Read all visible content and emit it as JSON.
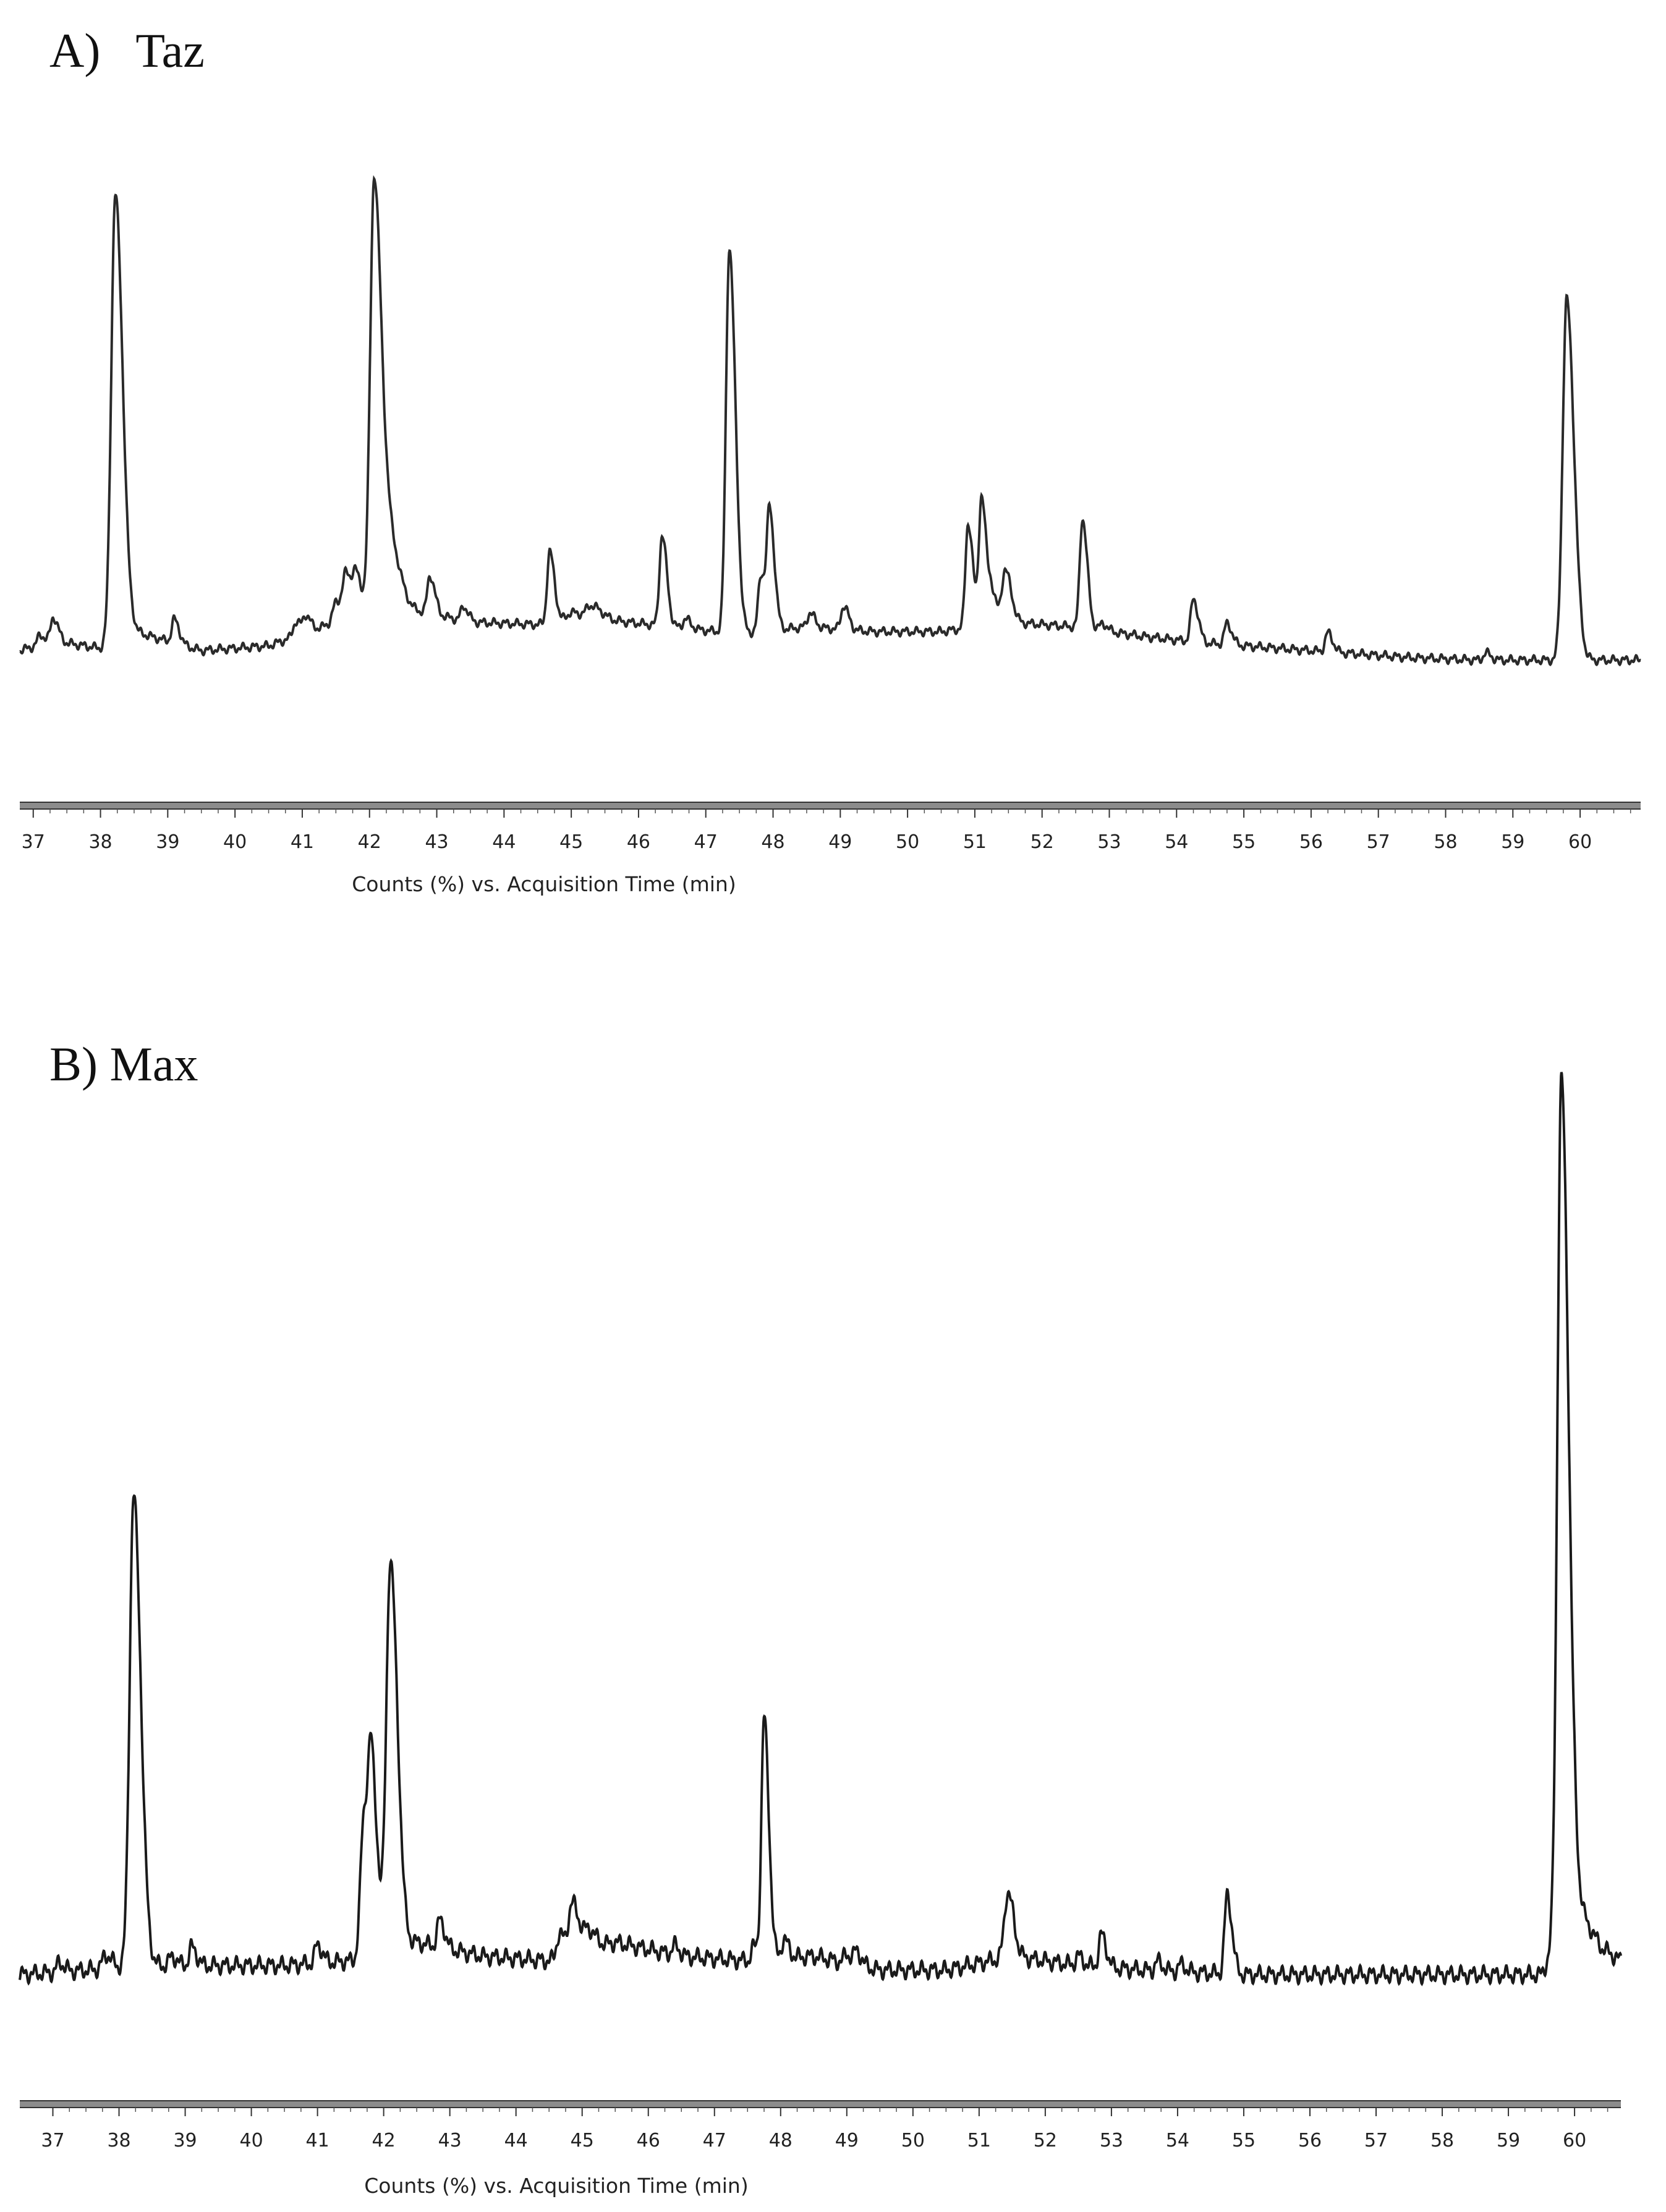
{
  "chart_data": [
    {
      "type": "line",
      "panel_label": "A)   Taz",
      "xlabel": "Counts (%) vs. Acquisition Time (min)",
      "ylabel": "",
      "xlim": [
        36.8,
        60.9
      ],
      "ylim": [
        0,
        100
      ],
      "xticks": [
        37,
        38,
        39,
        40,
        41,
        42,
        43,
        44,
        45,
        46,
        47,
        48,
        49,
        50,
        51,
        52,
        53,
        54,
        55,
        56,
        57,
        58,
        59,
        60
      ],
      "baseline": [
        [
          36.8,
          2.0
        ],
        [
          37.3,
          4.0
        ],
        [
          38.0,
          2.5
        ],
        [
          38.5,
          6.0
        ],
        [
          39.5,
          2.0
        ],
        [
          40.5,
          3.0
        ],
        [
          41.5,
          8.0
        ],
        [
          42.5,
          11.0
        ],
        [
          43.5,
          8.0
        ],
        [
          44.5,
          7.5
        ],
        [
          45.5,
          8.5
        ],
        [
          46.5,
          7.0
        ],
        [
          47.5,
          5.5
        ],
        [
          48.5,
          7.0
        ],
        [
          49.5,
          6.0
        ],
        [
          50.5,
          6.0
        ],
        [
          51.5,
          8.0
        ],
        [
          52.5,
          7.0
        ],
        [
          53.5,
          5.0
        ],
        [
          54.5,
          3.5
        ],
        [
          55.5,
          2.5
        ],
        [
          56.5,
          1.5
        ],
        [
          57.5,
          0.5
        ],
        [
          58.5,
          0.0
        ],
        [
          59.5,
          0.0
        ],
        [
          60.9,
          0.0
        ]
      ],
      "peaks": [
        {
          "x": 37.1,
          "h": 2.0,
          "w": 0.04
        },
        {
          "x": 37.3,
          "h": 5.0,
          "w": 0.04
        },
        {
          "x": 38.22,
          "h": 94.0,
          "w": 0.06
        },
        {
          "x": 39.1,
          "h": 5.0,
          "w": 0.04
        },
        {
          "x": 40.9,
          "h": 3.0,
          "w": 0.04
        },
        {
          "x": 41.05,
          "h": 3.5,
          "w": 0.04
        },
        {
          "x": 41.5,
          "h": 4.0,
          "w": 0.05
        },
        {
          "x": 41.65,
          "h": 9.0,
          "w": 0.05
        },
        {
          "x": 41.8,
          "h": 8.0,
          "w": 0.05
        },
        {
          "x": 42.07,
          "h": 92.0,
          "w": 0.06
        },
        {
          "x": 42.3,
          "h": 14.0,
          "w": 0.08
        },
        {
          "x": 42.9,
          "h": 8.0,
          "w": 0.04
        },
        {
          "x": 43.4,
          "h": 3.0,
          "w": 0.04
        },
        {
          "x": 44.68,
          "h": 15.0,
          "w": 0.04
        },
        {
          "x": 45.0,
          "h": 2.0,
          "w": 0.08
        },
        {
          "x": 45.3,
          "h": 3.0,
          "w": 0.08
        },
        {
          "x": 46.35,
          "h": 19.0,
          "w": 0.04
        },
        {
          "x": 46.7,
          "h": 2.0,
          "w": 0.04
        },
        {
          "x": 47.35,
          "h": 81.0,
          "w": 0.05
        },
        {
          "x": 47.82,
          "h": 12.0,
          "w": 0.04
        },
        {
          "x": 47.95,
          "h": 24.0,
          "w": 0.04
        },
        {
          "x": 48.55,
          "h": 3.0,
          "w": 0.04
        },
        {
          "x": 49.05,
          "h": 5.0,
          "w": 0.04
        },
        {
          "x": 50.9,
          "h": 22.0,
          "w": 0.04
        },
        {
          "x": 51.1,
          "h": 27.0,
          "w": 0.04
        },
        {
          "x": 51.25,
          "h": 6.0,
          "w": 0.04
        },
        {
          "x": 51.45,
          "h": 11.0,
          "w": 0.05
        },
        {
          "x": 52.6,
          "h": 23.0,
          "w": 0.04
        },
        {
          "x": 52.9,
          "h": 1.5,
          "w": 0.04
        },
        {
          "x": 54.25,
          "h": 9.0,
          "w": 0.04
        },
        {
          "x": 54.75,
          "h": 4.5,
          "w": 0.04
        },
        {
          "x": 56.25,
          "h": 4.0,
          "w": 0.04
        },
        {
          "x": 58.6,
          "h": 1.5,
          "w": 0.04
        },
        {
          "x": 59.8,
          "h": 76.0,
          "w": 0.06
        }
      ]
    },
    {
      "type": "line",
      "panel_label": "B) Max",
      "xlabel": "Counts (%) vs. Acquisition Time (min)",
      "ylabel": "",
      "xlim": [
        36.5,
        60.7
      ],
      "ylim": [
        0,
        100
      ],
      "xticks": [
        37,
        38,
        39,
        40,
        41,
        42,
        43,
        44,
        45,
        46,
        47,
        48,
        49,
        50,
        51,
        52,
        53,
        54,
        55,
        56,
        57,
        58,
        59,
        60
      ],
      "baseline": [
        [
          36.5,
          0.0
        ],
        [
          37.5,
          0.5
        ],
        [
          38.5,
          1.0
        ],
        [
          40.5,
          1.0
        ],
        [
          41.5,
          1.5
        ],
        [
          42.5,
          3.5
        ],
        [
          43.5,
          2.0
        ],
        [
          44.5,
          1.5
        ],
        [
          45.5,
          3.5
        ],
        [
          46.5,
          2.0
        ],
        [
          47.5,
          1.5
        ],
        [
          48.5,
          2.0
        ],
        [
          49.5,
          0.5
        ],
        [
          50.5,
          0.5
        ],
        [
          51.5,
          2.0
        ],
        [
          52.5,
          1.0
        ],
        [
          53.5,
          0.5
        ],
        [
          55.0,
          0.0
        ],
        [
          57.0,
          0.0
        ],
        [
          59.5,
          0.0
        ],
        [
          60.0,
          8.0
        ],
        [
          60.4,
          3.0
        ],
        [
          60.7,
          1.5
        ]
      ],
      "peaks": [
        {
          "x": 37.1,
          "h": 1.0,
          "w": 0.04
        },
        {
          "x": 37.8,
          "h": 1.5,
          "w": 0.05
        },
        {
          "x": 38.22,
          "h": 51.0,
          "w": 0.06
        },
        {
          "x": 38.8,
          "h": 1.0,
          "w": 0.04
        },
        {
          "x": 39.1,
          "h": 2.0,
          "w": 0.04
        },
        {
          "x": 41.0,
          "h": 2.0,
          "w": 0.04
        },
        {
          "x": 41.7,
          "h": 15.0,
          "w": 0.05
        },
        {
          "x": 41.82,
          "h": 17.0,
          "w": 0.05
        },
        {
          "x": 42.1,
          "h": 42.0,
          "w": 0.06
        },
        {
          "x": 42.85,
          "h": 3.0,
          "w": 0.04
        },
        {
          "x": 44.65,
          "h": 2.5,
          "w": 0.04
        },
        {
          "x": 44.85,
          "h": 5.5,
          "w": 0.06
        },
        {
          "x": 45.1,
          "h": 2.0,
          "w": 0.06
        },
        {
          "x": 46.4,
          "h": 1.0,
          "w": 0.04
        },
        {
          "x": 47.6,
          "h": 1.5,
          "w": 0.04
        },
        {
          "x": 47.75,
          "h": 26.0,
          "w": 0.04
        },
        {
          "x": 48.05,
          "h": 2.0,
          "w": 0.04
        },
        {
          "x": 49.0,
          "h": 1.0,
          "w": 0.04
        },
        {
          "x": 49.15,
          "h": 1.5,
          "w": 0.04
        },
        {
          "x": 51.43,
          "h": 7.0,
          "w": 0.05
        },
        {
          "x": 52.5,
          "h": 1.0,
          "w": 0.04
        },
        {
          "x": 52.85,
          "h": 3.5,
          "w": 0.04
        },
        {
          "x": 53.7,
          "h": 1.0,
          "w": 0.04
        },
        {
          "x": 54.05,
          "h": 0.8,
          "w": 0.04
        },
        {
          "x": 54.75,
          "h": 8.5,
          "w": 0.04
        },
        {
          "x": 59.8,
          "h": 92.0,
          "w": 0.06
        }
      ]
    }
  ]
}
